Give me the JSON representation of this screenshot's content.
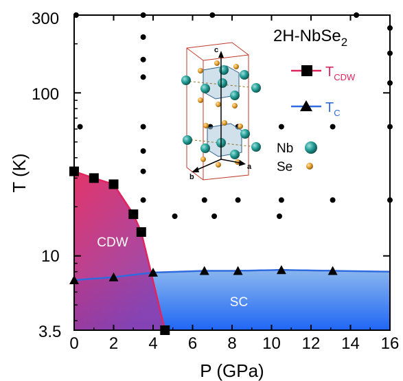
{
  "chart_data": {
    "type": "scatter",
    "title": "2H-NbSe",
    "title_subscript": "2",
    "xlabel": "P (GPa)",
    "ylabel": "T (K)",
    "xlim": [
      0,
      16
    ],
    "ylim": [
      3.5,
      300
    ],
    "yscale": "log",
    "x_ticks": [
      "0",
      "2",
      "4",
      "6",
      "8",
      "10",
      "12",
      "14",
      "16"
    ],
    "y_ticks": [
      "3.5",
      "10",
      "100",
      "300"
    ],
    "series": [
      {
        "name": "T",
        "name_subscript": "CDW",
        "marker": "square",
        "color": "#e0245e",
        "x": [
          0.0,
          1.0,
          2.0,
          3.0,
          3.4,
          4.6
        ],
        "y": [
          33,
          30,
          27.5,
          18,
          14,
          3.5
        ]
      },
      {
        "name": "T",
        "name_subscript": "C",
        "marker": "triangle",
        "color": "#2f6bde",
        "x": [
          0.0,
          2.0,
          4.0,
          6.6,
          8.3,
          10.5,
          13.1
        ],
        "y": [
          7.1,
          7.4,
          7.9,
          8.1,
          8.1,
          8.2,
          8.1
        ]
      }
    ],
    "measurement_points": [
      {
        "x": 0.1,
        "y": 300
      },
      {
        "x": 3.5,
        "y": 300
      },
      {
        "x": 7.0,
        "y": 300
      },
      {
        "x": 14.3,
        "y": 300
      },
      {
        "x": 3.5,
        "y": 220
      },
      {
        "x": 16.0,
        "y": 250
      },
      {
        "x": 16.0,
        "y": 175
      },
      {
        "x": 3.5,
        "y": 160
      },
      {
        "x": 3.5,
        "y": 125
      },
      {
        "x": 16.0,
        "y": 115
      },
      {
        "x": 0.3,
        "y": 62
      },
      {
        "x": 3.5,
        "y": 62
      },
      {
        "x": 6.9,
        "y": 62
      },
      {
        "x": 8.3,
        "y": 62
      },
      {
        "x": 10.5,
        "y": 62
      },
      {
        "x": 13.1,
        "y": 62
      },
      {
        "x": 16.0,
        "y": 62
      },
      {
        "x": 3.5,
        "y": 44
      },
      {
        "x": 3.5,
        "y": 33
      },
      {
        "x": 3.5,
        "y": 22
      },
      {
        "x": 6.6,
        "y": 22
      },
      {
        "x": 8.3,
        "y": 22
      },
      {
        "x": 10.5,
        "y": 22
      },
      {
        "x": 13.1,
        "y": 22
      },
      {
        "x": 16.0,
        "y": 22
      },
      {
        "x": 5.1,
        "y": 17.5
      },
      {
        "x": 7.1,
        "y": 17.5
      },
      {
        "x": 10.4,
        "y": 17.5
      }
    ],
    "regions": [
      {
        "label": "CDW",
        "colors": [
          "#e0245e",
          "#8c3fae"
        ]
      },
      {
        "label": "SC",
        "colors": [
          "#1f66f5",
          "#8ab6ee"
        ]
      }
    ],
    "inset": {
      "axis_labels": [
        "c",
        "a",
        "b"
      ],
      "legend": [
        {
          "label": "Nb",
          "color": "#25a098"
        },
        {
          "label": "Se",
          "color": "#e6a030"
        }
      ]
    }
  }
}
